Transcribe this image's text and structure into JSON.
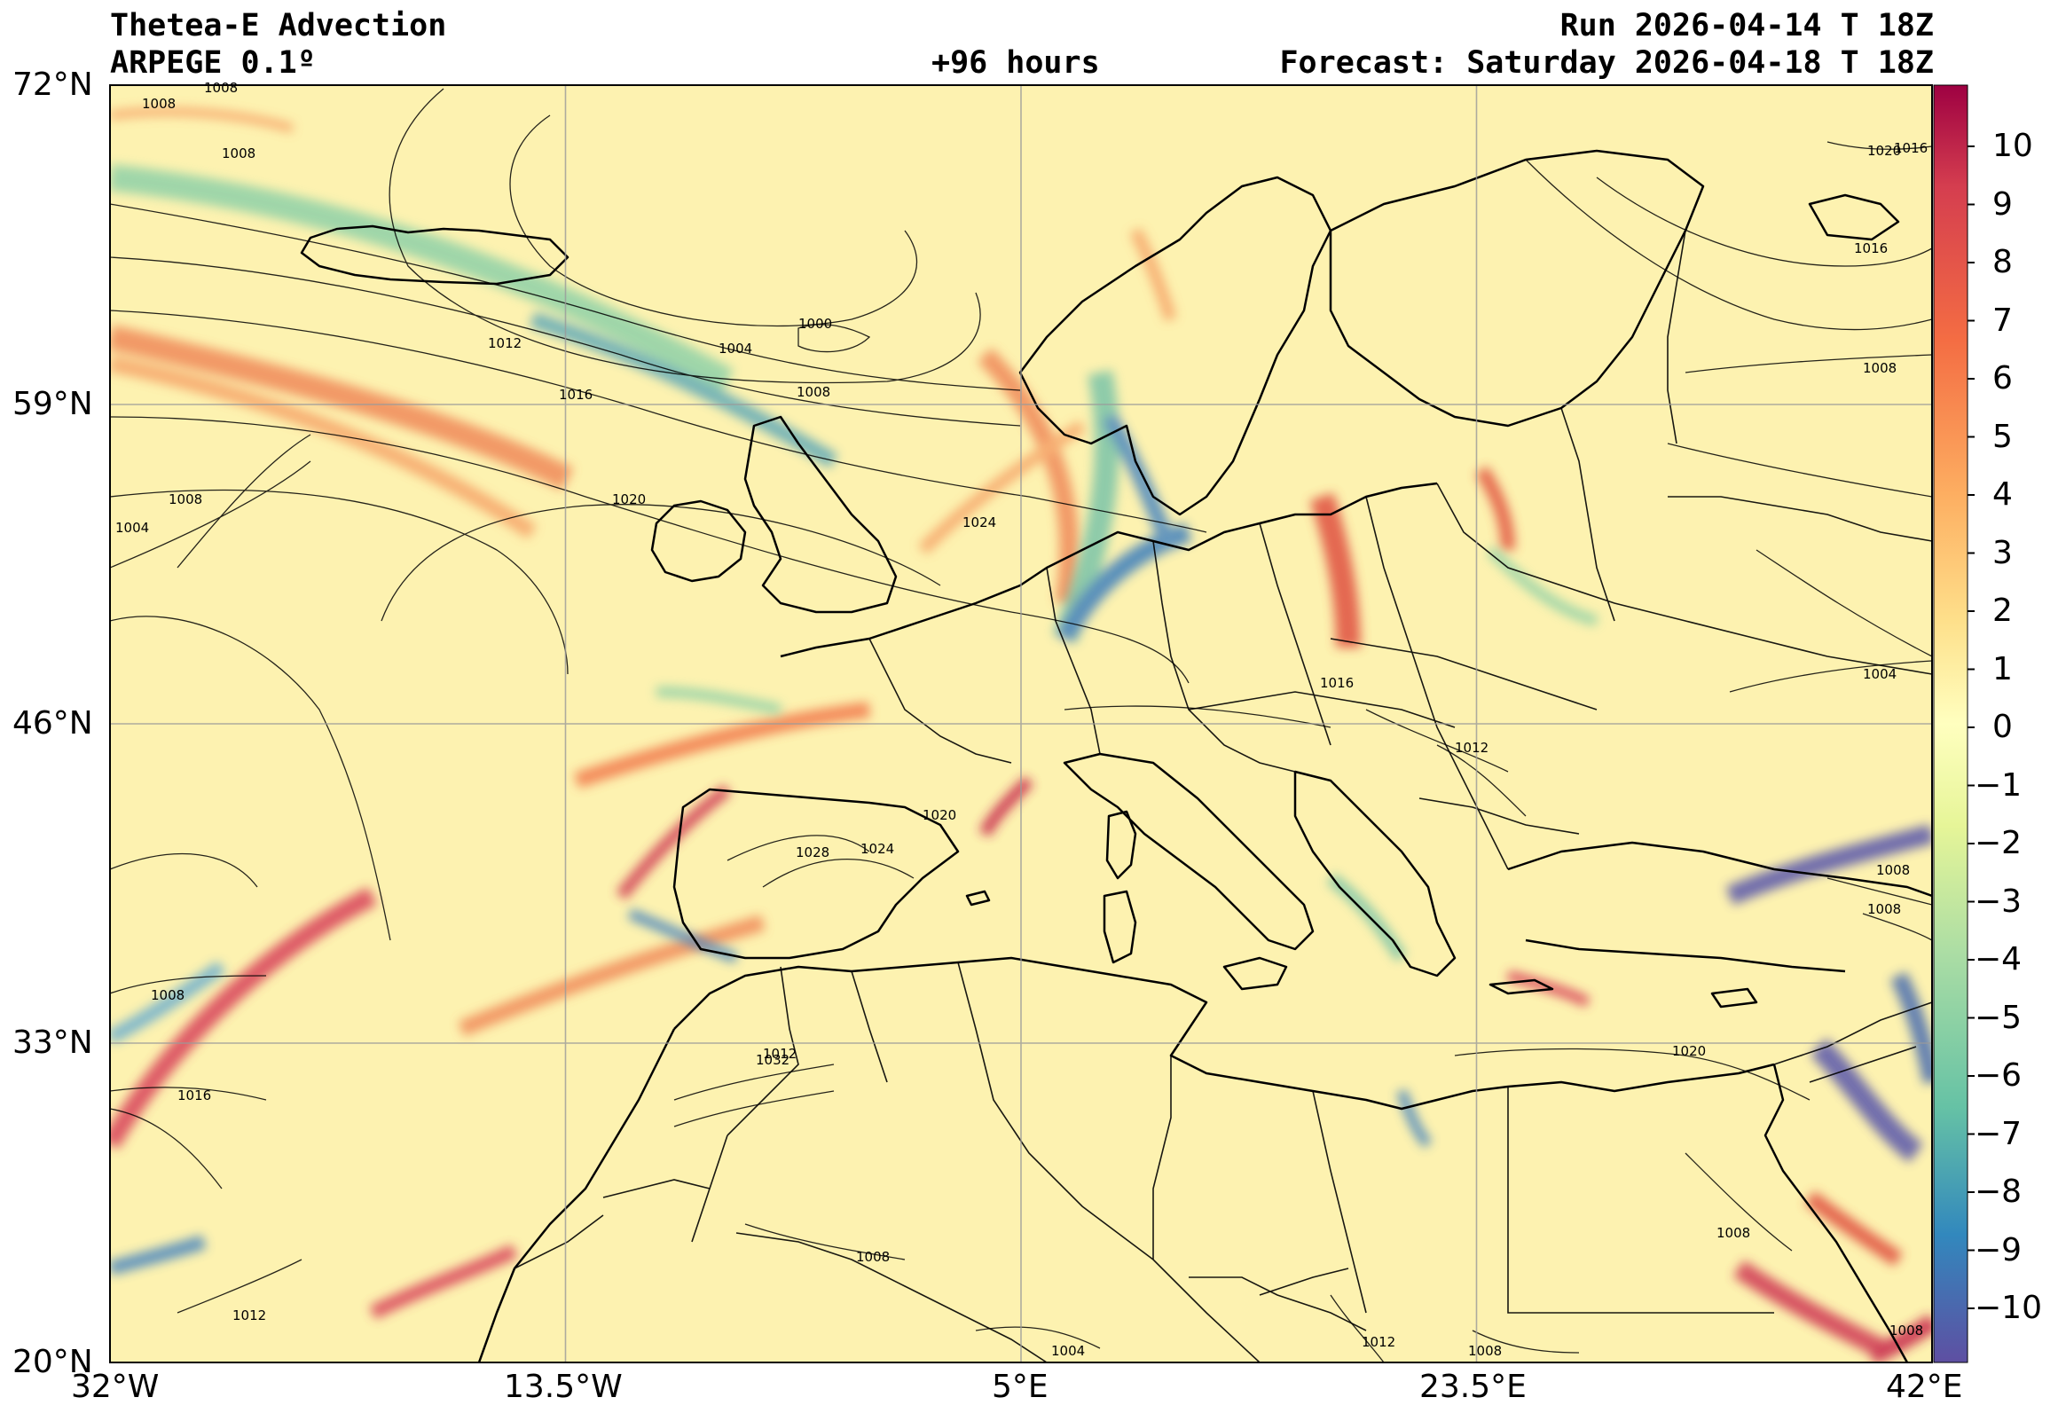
{
  "header": {
    "title": "Thetea-E Advection",
    "model": "ARPEGE 0.1º",
    "lead": "+96 hours",
    "run": "Run 2026-04-14 T 18Z",
    "forecast": "Forecast: Saturday 2026-04-18 T 18Z"
  },
  "map": {
    "projection": "equirectangular",
    "lon_range": [
      -32,
      42
    ],
    "lat_range": [
      20,
      72
    ],
    "lat_ticks": [
      "72°N",
      "59°N",
      "46°N",
      "33°N",
      "20°N"
    ],
    "lon_ticks": [
      "32°W",
      "13.5°W",
      "5°E",
      "23.5°E",
      "42°E"
    ],
    "grid": true,
    "field": "theta-e advection (shaded)",
    "isobars": "mean sea level pressure (hPa, black contours)",
    "isobar_labels": [
      "1008",
      "1008",
      "1008",
      "1000",
      "1004",
      "1008",
      "1012",
      "1016",
      "1020",
      "1024",
      "1004",
      "1008",
      "1012",
      "1016",
      "1020",
      "1024",
      "1028",
      "1032",
      "1020",
      "1008",
      "1016",
      "1008",
      "1004",
      "1008",
      "1008",
      "1008",
      "1008",
      "1012",
      "1016",
      "1020",
      "1016",
      "1008",
      "1004",
      "1012",
      "1008",
      "1012"
    ]
  },
  "colorbar": {
    "ticks": [
      "10",
      "9",
      "8",
      "7",
      "6",
      "5",
      "4",
      "3",
      "2",
      "1",
      "0",
      "−1",
      "−2",
      "−3",
      "−4",
      "−5",
      "−6",
      "−7",
      "−8",
      "−9",
      "−10"
    ],
    "colors": [
      "#9e0142",
      "#b8204c",
      "#d53e4f",
      "#e55a4a",
      "#f46d43",
      "#f88a52",
      "#fdae61",
      "#fec67a",
      "#fee08b",
      "#fff0a6",
      "#ffffbf",
      "#f0f8a8",
      "#e6f598",
      "#c8e9a0",
      "#abdda4",
      "#89cfa4",
      "#66c2a5",
      "#4da6b1",
      "#3288bd",
      "#4a6db1",
      "#5e4fa2"
    ],
    "accent_background": "#fdf2b0"
  }
}
